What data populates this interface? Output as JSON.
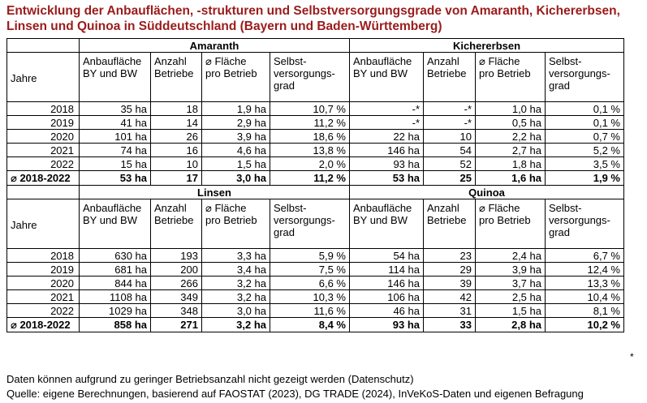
{
  "title": "Entwicklung der Anbauflächen, -strukturen und Selbstversorgungsgrade von Amaranth, Kichererbsen, Linsen und Quinoa in Süddeutschland (Bayern und Baden-Württemberg)",
  "headers": {
    "jahre": "Jahre",
    "area_line1": "Anbaufläche",
    "area_line2": "BY und BW",
    "farms_line1": "Anzahl",
    "farms_line2": "Betriebe",
    "avg_line1": "⌀ Fläche",
    "avg_line2": "pro Betrieb",
    "self_line1": "Selbst-",
    "self_line2": "versorgungs-",
    "self_line3": "grad"
  },
  "blocks": [
    {
      "crops": [
        "Amaranth",
        "Kichererbsen"
      ],
      "rows": [
        {
          "year": "2018",
          "a": [
            "35 ha",
            "18",
            "1,9 ha",
            "10,7 %"
          ],
          "b": [
            "-*",
            "-*",
            "1,0 ha",
            "0,1 %"
          ]
        },
        {
          "year": "2019",
          "a": [
            "41 ha",
            "14",
            "2,9 ha",
            "11,2 %"
          ],
          "b": [
            "-*",
            "-*",
            "0,5 ha",
            "0,1 %"
          ]
        },
        {
          "year": "2020",
          "a": [
            "101 ha",
            "26",
            "3,9 ha",
            "18,6 %"
          ],
          "b": [
            "22 ha",
            "10",
            "2,2 ha",
            "0,7 %"
          ]
        },
        {
          "year": "2021",
          "a": [
            "74 ha",
            "16",
            "4,6 ha",
            "13,8 %"
          ],
          "b": [
            "146 ha",
            "54",
            "2,7 ha",
            "5,2 %"
          ]
        },
        {
          "year": "2022",
          "a": [
            "15 ha",
            "10",
            "1,5 ha",
            "2,0 %"
          ],
          "b": [
            "93 ha",
            "52",
            "1,8 ha",
            "3,5 %"
          ]
        }
      ],
      "avg": {
        "label": "⌀ 2018-2022",
        "a": [
          "53 ha",
          "17",
          "3,0 ha",
          "11,2 %"
        ],
        "b": [
          "53 ha",
          "25",
          "1,6 ha",
          "1,9 %"
        ]
      }
    },
    {
      "crops": [
        "Linsen",
        "Quinoa"
      ],
      "rows": [
        {
          "year": "2018",
          "a": [
            "630 ha",
            "193",
            "3,3 ha",
            "5,9 %"
          ],
          "b": [
            "54 ha",
            "23",
            "2,4 ha",
            "6,7 %"
          ]
        },
        {
          "year": "2019",
          "a": [
            "681 ha",
            "200",
            "3,4 ha",
            "7,5 %"
          ],
          "b": [
            "114 ha",
            "29",
            "3,9 ha",
            "12,4 %"
          ]
        },
        {
          "year": "2020",
          "a": [
            "844 ha",
            "266",
            "3,2 ha",
            "6,6 %"
          ],
          "b": [
            "146 ha",
            "39",
            "3,7 ha",
            "13,3 %"
          ]
        },
        {
          "year": "2021",
          "a": [
            "1108 ha",
            "349",
            "3,2 ha",
            "10,3 %"
          ],
          "b": [
            "106 ha",
            "42",
            "2,5 ha",
            "10,4 %"
          ]
        },
        {
          "year": "2022",
          "a": [
            "1029 ha",
            "348",
            "3,0 ha",
            "11,6 %"
          ],
          "b": [
            "46 ha",
            "31",
            "1,5 ha",
            "8,1 %"
          ]
        }
      ],
      "avg": {
        "label": "⌀ 2018-2022",
        "a": [
          "858 ha",
          "271",
          "3,2 ha",
          "8,4 %"
        ],
        "b": [
          "93 ha",
          "33",
          "2,8 ha",
          "10,2 %"
        ]
      }
    }
  ],
  "outside_star": "*",
  "footnote": "Daten können aufgrund zu geringer Betriebsanzahl nicht gezeigt werden (Datenschutz)",
  "source": "Quelle: eigene Berechnungen, basierend auf FAOSTAT (2023), DG TRADE (2024), InVeKoS-Daten und eigenen Befragung"
}
